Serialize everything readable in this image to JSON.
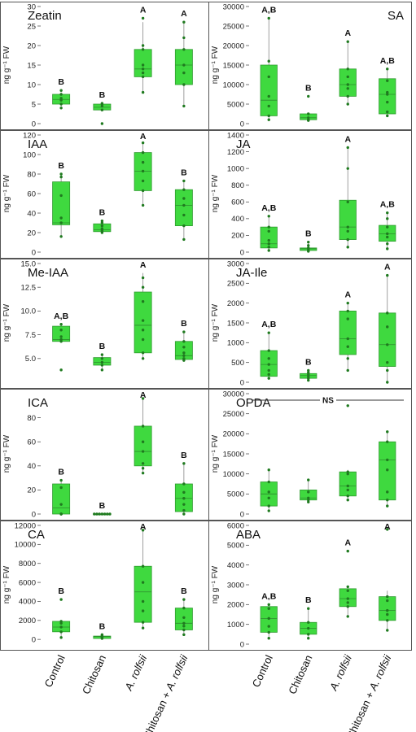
{
  "ylabel": "ng g⁻¹ FW",
  "categories": [
    "Control",
    "Chitosan",
    "A. rolfsii",
    "Chitosan + A. rolfsii"
  ],
  "chart_data": [
    {
      "type": "box",
      "title": "Zeatin",
      "column": 0,
      "row": 0,
      "ylim": [
        0,
        30
      ],
      "yticks": [
        0,
        5,
        10,
        15,
        20,
        25,
        30
      ],
      "tick_labels": [
        "0",
        "5",
        "10",
        "15",
        "20",
        "25",
        "30"
      ],
      "title_pos": "left",
      "boxes": [
        {
          "q1": 5,
          "median": 6.2,
          "q3": 7.5,
          "min": 3.8,
          "max": 8
        },
        {
          "q1": 3.5,
          "median": 4.2,
          "q3": 5,
          "min": 3.5,
          "max": 5
        },
        {
          "q1": 12,
          "median": 14,
          "q3": 19,
          "min": 8,
          "max": 26
        },
        {
          "q1": 10,
          "median": 15,
          "q3": 19,
          "min": 4.5,
          "max": 26
        }
      ],
      "points": [
        [
          4,
          5,
          6,
          6.5,
          7.5,
          8.5
        ],
        [
          0,
          3.5,
          4.5,
          5,
          5.2
        ],
        [
          8,
          12,
          13,
          14,
          15,
          19,
          20,
          27
        ],
        [
          4.5,
          10,
          13,
          15,
          19,
          22,
          26
        ]
      ],
      "letters": [
        "B",
        "B",
        "A",
        "A"
      ]
    },
    {
      "type": "box",
      "title": "SA",
      "column": 1,
      "row": 0,
      "ylim": [
        0,
        30000
      ],
      "yticks": [
        0,
        5000,
        10000,
        15000,
        20000,
        25000,
        30000
      ],
      "tick_labels": [
        "0",
        "5000",
        "10000",
        "15000",
        "20000",
        "25000",
        "30000"
      ],
      "title_pos": "right",
      "boxes": [
        {
          "q1": 2000,
          "median": 6000,
          "q3": 15000,
          "min": 1000,
          "max": 27000
        },
        {
          "q1": 1000,
          "median": 1500,
          "q3": 2500,
          "min": 800,
          "max": 2500
        },
        {
          "q1": 7000,
          "median": 10000,
          "q3": 14000,
          "min": 5000,
          "max": 21000
        },
        {
          "q1": 2500,
          "median": 7500,
          "q3": 11500,
          "min": 2000,
          "max": 14000
        }
      ],
      "points": [
        [
          1000,
          2000,
          4500,
          7000,
          12000,
          16000,
          27000
        ],
        [
          800,
          1000,
          1500,
          2500,
          7000
        ],
        [
          5000,
          7000,
          9000,
          10000,
          12000,
          14000,
          21000
        ],
        [
          2000,
          3000,
          5500,
          7500,
          8000,
          11000,
          14000
        ]
      ],
      "letters": [
        "A,B",
        "B",
        "A",
        "A,B"
      ]
    },
    {
      "type": "box",
      "title": "IAA",
      "column": 0,
      "row": 1,
      "ylim": [
        0,
        120
      ],
      "yticks": [
        0,
        20,
        40,
        60,
        80,
        100,
        120
      ],
      "tick_labels": [
        "0",
        "20",
        "40",
        "60",
        "80",
        "100",
        "120"
      ],
      "title_pos": "left",
      "boxes": [
        {
          "q1": 28,
          "median": 30,
          "q3": 72,
          "min": 16,
          "max": 80
        },
        {
          "q1": 21,
          "median": 23,
          "q3": 29,
          "min": 20,
          "max": 32
        },
        {
          "q1": 63,
          "median": 83,
          "q3": 102,
          "min": 48,
          "max": 112
        },
        {
          "q1": 27,
          "median": 48,
          "q3": 64,
          "min": 13,
          "max": 73
        }
      ],
      "points": [
        [
          16,
          30,
          35,
          58,
          77,
          80
        ],
        [
          20,
          22,
          24,
          27,
          30,
          32
        ],
        [
          48,
          63,
          73,
          83,
          92,
          102,
          112
        ],
        [
          13,
          27,
          38,
          48,
          55,
          64,
          73
        ]
      ],
      "letters": [
        "B",
        "B",
        "A",
        "B"
      ]
    },
    {
      "type": "box",
      "title": "JA",
      "column": 1,
      "row": 1,
      "ylim": [
        0,
        1400
      ],
      "yticks": [
        0,
        200,
        400,
        600,
        800,
        1000,
        1200,
        1400
      ],
      "tick_labels": [
        "0",
        "200",
        "400",
        "600",
        "800",
        "1000",
        "1200",
        "1400"
      ],
      "title_pos": "left",
      "boxes": [
        {
          "q1": 50,
          "median": 100,
          "q3": 300,
          "min": 20,
          "max": 430
        },
        {
          "q1": 20,
          "median": 40,
          "q3": 50,
          "min": 10,
          "max": 120
        },
        {
          "q1": 150,
          "median": 300,
          "q3": 620,
          "min": 60,
          "max": 1250
        },
        {
          "q1": 130,
          "median": 220,
          "q3": 320,
          "min": 40,
          "max": 470
        }
      ],
      "points": [
        [
          20,
          60,
          100,
          140,
          250,
          300,
          430
        ],
        [
          10,
          20,
          40,
          50,
          80,
          120
        ],
        [
          60,
          150,
          250,
          300,
          600,
          1000,
          1250
        ],
        [
          40,
          100,
          180,
          220,
          300,
          400,
          470
        ]
      ],
      "letters": [
        "A,B",
        "B",
        "A",
        "A,B"
      ]
    },
    {
      "type": "box",
      "title": "Me-IAA",
      "column": 0,
      "row": 2,
      "ylim": [
        2.5,
        15
      ],
      "yticks": [
        5,
        7.5,
        10,
        12.5,
        15
      ],
      "tick_labels": [
        "5.0",
        "7.5",
        "10.0",
        "12.5",
        "15.0"
      ],
      "title_pos": "left",
      "boxes": [
        {
          "q1": 6.8,
          "median": 7,
          "q3": 8.4,
          "min": 6.8,
          "max": 8.6
        },
        {
          "q1": 4.3,
          "median": 4.6,
          "q3": 5.1,
          "min": 3.8,
          "max": 5.4
        },
        {
          "q1": 5.6,
          "median": 8.5,
          "q3": 12,
          "min": 5,
          "max": 14
        },
        {
          "q1": 4.9,
          "median": 5.3,
          "q3": 6.8,
          "min": 4.8,
          "max": 7.8
        }
      ],
      "points": [
        [
          3.8,
          6.8,
          7,
          7.3,
          8,
          8.6
        ],
        [
          3.8,
          4.3,
          4.6,
          5,
          5.4
        ],
        [
          5,
          5.6,
          7,
          8,
          9,
          11,
          12.5,
          13.5
        ],
        [
          4.8,
          5,
          5.3,
          5.6,
          6.2,
          6.8,
          7.8
        ]
      ],
      "letters": [
        "A,B",
        "B",
        "A",
        "B"
      ]
    },
    {
      "type": "box",
      "title": "JA-Ile",
      "column": 1,
      "row": 2,
      "ylim": [
        0,
        3000
      ],
      "yticks": [
        0,
        500,
        1000,
        1500,
        2000,
        2500,
        3000
      ],
      "tick_labels": [
        "0",
        "500",
        "1000",
        "1500",
        "2000",
        "2500",
        "3000"
      ],
      "title_pos": "left",
      "boxes": [
        {
          "q1": 150,
          "median": 450,
          "q3": 800,
          "min": 100,
          "max": 1250
        },
        {
          "q1": 100,
          "median": 170,
          "q3": 220,
          "min": 50,
          "max": 300
        },
        {
          "q1": 700,
          "median": 1100,
          "q3": 1800,
          "min": 300,
          "max": 2000
        },
        {
          "q1": 400,
          "median": 950,
          "q3": 1750,
          "min": 0,
          "max": 2700
        }
      ],
      "points": [
        [
          100,
          200,
          300,
          450,
          600,
          800,
          1250
        ],
        [
          50,
          100,
          150,
          200,
          250,
          300
        ],
        [
          300,
          600,
          900,
          1100,
          1600,
          1800,
          2000
        ],
        [
          0,
          300,
          500,
          950,
          1400,
          1750,
          2700
        ]
      ],
      "letters": [
        "A,B",
        "B",
        "A",
        "A"
      ]
    },
    {
      "type": "box",
      "title": "ICA",
      "column": 0,
      "row": 3,
      "ylim": [
        0,
        100
      ],
      "yticks": [
        0,
        20,
        40,
        60,
        80
      ],
      "tick_labels": [
        "0",
        "20",
        "40",
        "60",
        "80"
      ],
      "title_pos": "left",
      "boxes": [
        {
          "q1": 0,
          "median": 5,
          "q3": 25,
          "min": 0,
          "max": 28
        },
        {
          "q1": 0,
          "median": 0,
          "q3": 0,
          "min": 0,
          "max": 0
        },
        {
          "q1": 40,
          "median": 52,
          "q3": 73,
          "min": 34,
          "max": 97
        },
        {
          "q1": 2,
          "median": 13,
          "q3": 25,
          "min": 0,
          "max": 42
        }
      ],
      "points": [
        [
          0,
          0,
          0,
          8,
          22,
          28
        ],
        [
          0,
          0,
          0,
          0,
          0,
          0,
          0
        ],
        [
          34,
          38,
          42,
          52,
          60,
          73,
          96
        ],
        [
          0,
          3,
          8,
          13,
          18,
          25,
          42
        ]
      ],
      "letters": [
        "B",
        "B",
        "A",
        "B"
      ]
    },
    {
      "type": "box",
      "title": "OPDA",
      "column": 1,
      "row": 3,
      "ylim": [
        0,
        30000
      ],
      "yticks": [
        0,
        5000,
        10000,
        15000,
        20000,
        25000,
        30000
      ],
      "tick_labels": [
        "0",
        "5000",
        "10000",
        "15000",
        "20000",
        "25000",
        "30000"
      ],
      "title_pos": "left",
      "ns": "NS",
      "boxes": [
        {
          "q1": 2000,
          "median": 5000,
          "q3": 8000,
          "min": 800,
          "max": 11000
        },
        {
          "q1": 3500,
          "median": 4000,
          "q3": 6000,
          "min": 3000,
          "max": 8500
        },
        {
          "q1": 4500,
          "median": 7000,
          "q3": 10500,
          "min": 3500,
          "max": 11000
        },
        {
          "q1": 3500,
          "median": 13500,
          "q3": 18000,
          "min": 2000,
          "max": 20500
        }
      ],
      "points": [
        [
          800,
          2000,
          4000,
          5500,
          8000,
          11000
        ],
        [
          3000,
          3500,
          4000,
          5500,
          8500
        ],
        [
          3500,
          4500,
          6000,
          7000,
          10000,
          10500,
          27000
        ],
        [
          2000,
          3500,
          5500,
          11000,
          13500,
          18000,
          20500
        ]
      ],
      "letters": [
        "",
        "",
        "",
        ""
      ]
    },
    {
      "type": "box",
      "title": "CA",
      "column": 0,
      "row": 4,
      "ylim": [
        -500,
        12000
      ],
      "yticks": [
        0,
        2000,
        4000,
        6000,
        8000,
        10000,
        12000
      ],
      "tick_labels": [
        "0",
        "2000",
        "4000",
        "6000",
        "8000",
        "10000",
        "12000"
      ],
      "title_pos": "left",
      "boxes": [
        {
          "q1": 800,
          "median": 1300,
          "q3": 1900,
          "min": 200,
          "max": 1900
        },
        {
          "q1": 100,
          "median": 300,
          "q3": 350,
          "min": 100,
          "max": 500
        },
        {
          "q1": 1800,
          "median": 5000,
          "q3": 7700,
          "min": 1200,
          "max": 11500
        },
        {
          "q1": 1000,
          "median": 1700,
          "q3": 3300,
          "min": 500,
          "max": 4200
        }
      ],
      "points": [
        [
          200,
          800,
          1300,
          1700,
          1900,
          4200
        ],
        [
          100,
          200,
          300,
          400,
          500
        ],
        [
          1200,
          1800,
          3000,
          4000,
          6000,
          7700,
          11500
        ],
        [
          500,
          1000,
          1400,
          1700,
          2300,
          3300,
          4200
        ]
      ],
      "letters": [
        "B",
        "B",
        "A",
        "B"
      ]
    },
    {
      "type": "box",
      "title": "ABA",
      "column": 1,
      "row": 4,
      "ylim": [
        0,
        6000
      ],
      "yticks": [
        0,
        1000,
        2000,
        3000,
        4000,
        5000,
        6000
      ],
      "tick_labels": [
        "0",
        "1000",
        "2000",
        "3000",
        "4000",
        "5000",
        "6000"
      ],
      "title_pos": "left",
      "boxes": [
        {
          "q1": 600,
          "median": 1300,
          "q3": 1900,
          "min": 300,
          "max": 2000
        },
        {
          "q1": 500,
          "median": 800,
          "q3": 1100,
          "min": 300,
          "max": 1800
        },
        {
          "q1": 1900,
          "median": 2300,
          "q3": 2800,
          "min": 1400,
          "max": 2900
        },
        {
          "q1": 1200,
          "median": 1700,
          "q3": 2400,
          "min": 700,
          "max": 2700
        }
      ],
      "points": [
        [
          300,
          600,
          900,
          1300,
          1800,
          2000
        ],
        [
          300,
          500,
          800,
          1100,
          1800
        ],
        [
          1400,
          1900,
          2100,
          2300,
          2700,
          2900,
          4700
        ],
        [
          700,
          1200,
          1500,
          1700,
          2200,
          2400,
          5800
        ]
      ],
      "letters": [
        "A,B",
        "B",
        "A",
        "A"
      ]
    }
  ]
}
